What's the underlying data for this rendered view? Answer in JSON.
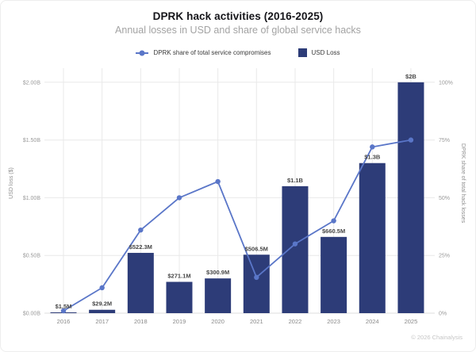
{
  "card": {
    "title": "DPRK hack activities (2016-2025)",
    "subtitle": "Annual losses in USD and share of global service hacks",
    "footer": "© 2026 Chainalysis"
  },
  "legend": {
    "items": [
      {
        "type": "line-dot-marker",
        "label": "DPRK share of total service compromises"
      },
      {
        "type": "square-marker",
        "label": "USD Loss"
      }
    ]
  },
  "chart_data": {
    "type": "bar+line combo",
    "categories": [
      "2016",
      "2017",
      "2018",
      "2019",
      "2020",
      "2021",
      "2022",
      "2023",
      "2024",
      "2025"
    ],
    "series": [
      {
        "name": "USD Loss",
        "type": "bar",
        "axis": "left",
        "values_usd_millions": [
          1.5,
          29.2,
          522.3,
          271.1,
          300.9,
          506.5,
          1100,
          660.5,
          1300,
          2000
        ],
        "labels": [
          "$1.5M",
          "$29.2M",
          "$522.3M",
          "$271.1M",
          "$300.9M",
          "$506.5M",
          "$1.1B",
          "$660.5M",
          "$1.3B",
          "$2B"
        ],
        "color": "#2d3c78"
      },
      {
        "name": "DPRK share of total service compromises",
        "type": "line",
        "axis": "right",
        "values_percent_estimated": [
          1,
          11,
          36,
          50,
          57,
          15.5,
          30,
          40,
          72,
          75
        ],
        "color": "#5a76c8"
      }
    ],
    "left_axis": {
      "title": "USD loss ($)",
      "ticks": [
        "$0.00B",
        "$0.50B",
        "$1.00B",
        "$1.50B",
        "$2.00B"
      ],
      "range_usd_millions": [
        0,
        2000
      ]
    },
    "right_axis": {
      "title": "DPRK share of total hack losses",
      "ticks": [
        "0%",
        "25%",
        "50%",
        "75%",
        "100%"
      ],
      "range_percent": [
        0,
        100
      ]
    },
    "grid": true,
    "legend_position": "top-center"
  },
  "colors": {
    "bar": "#2d3c78",
    "line": "#5a76c8",
    "grid": "#e9e9e9",
    "baseline": "#dedede",
    "tick_text": "#9a9a9a",
    "x_tick_text": "#8a8a8a",
    "axis_title_text": "#8f8f8f",
    "value_label": "#474747"
  }
}
